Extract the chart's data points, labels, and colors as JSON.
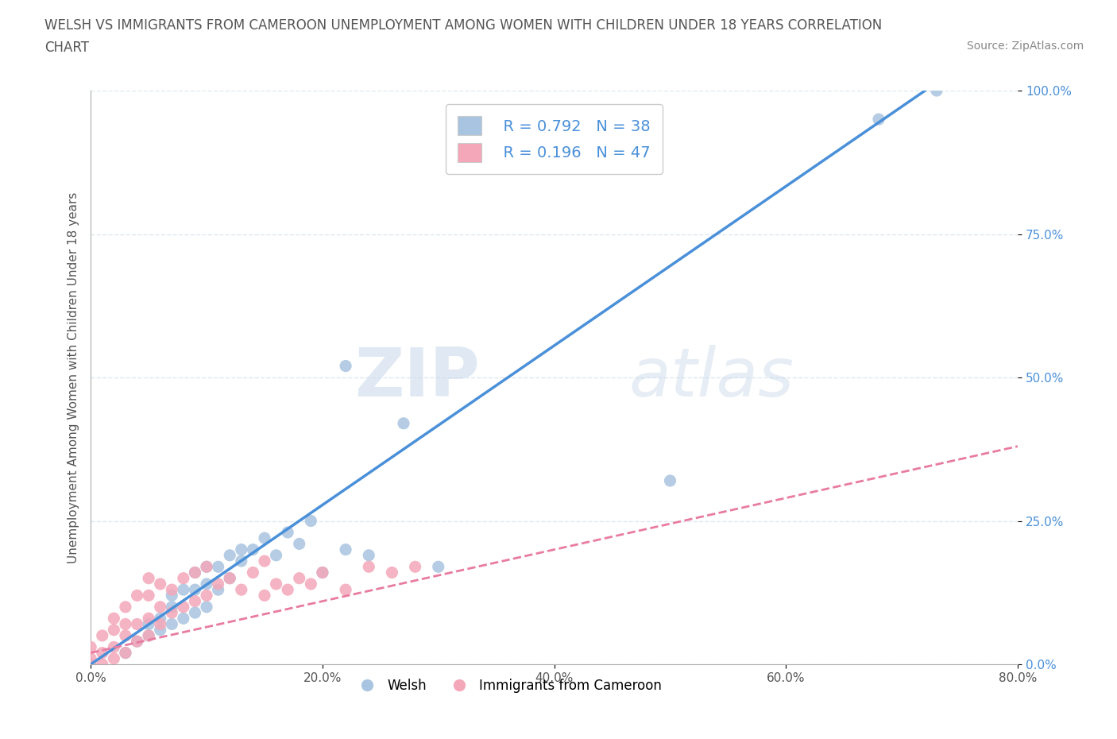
{
  "title_line1": "WELSH VS IMMIGRANTS FROM CAMEROON UNEMPLOYMENT AMONG WOMEN WITH CHILDREN UNDER 18 YEARS CORRELATION",
  "title_line2": "CHART",
  "source": "Source: ZipAtlas.com",
  "ylabel": "Unemployment Among Women with Children Under 18 years",
  "xlabel": "",
  "xticklabels": [
    "0.0%",
    "",
    "20.0%",
    "",
    "40.0%",
    "",
    "60.0%",
    "",
    "80.0%"
  ],
  "xtick_values": [
    0,
    0.1,
    0.2,
    0.3,
    0.4,
    0.5,
    0.6,
    0.7,
    0.8
  ],
  "yticklabels": [
    "0.0%",
    "25.0%",
    "50.0%",
    "75.0%",
    "100.0%"
  ],
  "ytick_values": [
    0,
    0.25,
    0.5,
    0.75,
    1.0
  ],
  "xlim": [
    0,
    0.8
  ],
  "ylim": [
    0,
    1.0
  ],
  "welsh_color": "#a8c4e0",
  "cameroon_color": "#f4a7b9",
  "welsh_trendline_color": "#4a90d9",
  "cameroon_trendline_color": "#e87ca0",
  "welsh_R": 0.792,
  "welsh_N": 38,
  "cameroon_R": 0.196,
  "cameroon_N": 47,
  "watermark_zip": "ZIP",
  "watermark_atlas": "atlas",
  "background_color": "#ffffff",
  "grid_color": "#dde8f0",
  "title_color": "#555555",
  "legend_label_welsh": "Welsh",
  "legend_label_cameroon": "Immigrants from Cameroon",
  "welsh_trend_x0": 0.0,
  "welsh_trend_y0": 0.0,
  "welsh_trend_x1": 0.72,
  "welsh_trend_y1": 1.0,
  "cameroon_trend_x0": 0.0,
  "cameroon_trend_y0": 0.02,
  "cameroon_trend_x1": 0.8,
  "cameroon_trend_y1": 0.38,
  "welsh_x": [
    0.03,
    0.04,
    0.05,
    0.05,
    0.06,
    0.06,
    0.07,
    0.07,
    0.07,
    0.08,
    0.08,
    0.09,
    0.09,
    0.09,
    0.1,
    0.1,
    0.1,
    0.11,
    0.11,
    0.12,
    0.12,
    0.13,
    0.13,
    0.14,
    0.15,
    0.16,
    0.17,
    0.18,
    0.19,
    0.2,
    0.22,
    0.24,
    0.27,
    0.3,
    0.22,
    0.68,
    0.73,
    0.5
  ],
  "welsh_y": [
    0.02,
    0.04,
    0.05,
    0.07,
    0.06,
    0.08,
    0.07,
    0.1,
    0.12,
    0.08,
    0.13,
    0.09,
    0.13,
    0.16,
    0.1,
    0.14,
    0.17,
    0.13,
    0.17,
    0.15,
    0.19,
    0.18,
    0.2,
    0.2,
    0.22,
    0.19,
    0.23,
    0.21,
    0.25,
    0.16,
    0.2,
    0.19,
    0.42,
    0.17,
    0.52,
    0.95,
    1.0,
    0.32
  ],
  "cameroon_x": [
    0.0,
    0.0,
    0.0,
    0.01,
    0.01,
    0.01,
    0.02,
    0.02,
    0.02,
    0.02,
    0.03,
    0.03,
    0.03,
    0.03,
    0.04,
    0.04,
    0.04,
    0.05,
    0.05,
    0.05,
    0.05,
    0.06,
    0.06,
    0.06,
    0.07,
    0.07,
    0.08,
    0.08,
    0.09,
    0.09,
    0.1,
    0.1,
    0.11,
    0.12,
    0.13,
    0.14,
    0.15,
    0.15,
    0.16,
    0.17,
    0.18,
    0.19,
    0.2,
    0.22,
    0.24,
    0.26,
    0.28
  ],
  "cameroon_y": [
    0.0,
    0.01,
    0.03,
    0.0,
    0.02,
    0.05,
    0.01,
    0.03,
    0.06,
    0.08,
    0.02,
    0.05,
    0.07,
    0.1,
    0.04,
    0.07,
    0.12,
    0.05,
    0.08,
    0.12,
    0.15,
    0.07,
    0.1,
    0.14,
    0.09,
    0.13,
    0.1,
    0.15,
    0.11,
    0.16,
    0.12,
    0.17,
    0.14,
    0.15,
    0.13,
    0.16,
    0.12,
    0.18,
    0.14,
    0.13,
    0.15,
    0.14,
    0.16,
    0.13,
    0.17,
    0.16,
    0.17
  ]
}
